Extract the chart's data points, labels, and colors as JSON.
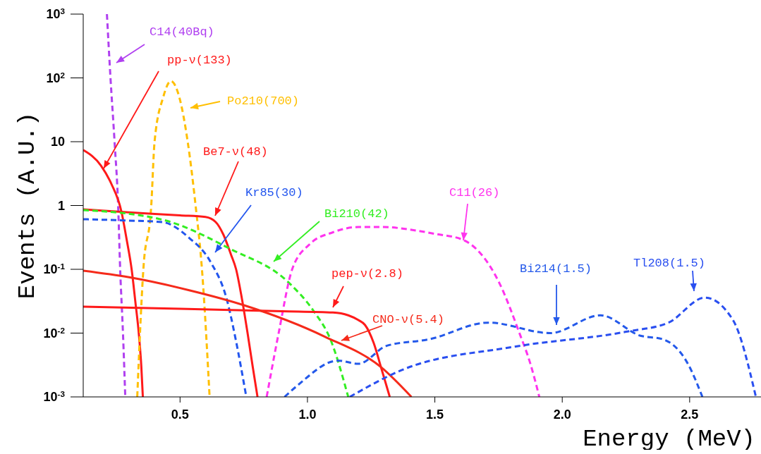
{
  "chart_data": {
    "type": "line",
    "xlabel": "Energy (MeV)",
    "ylabel": "Events (A.U.)",
    "log": "y",
    "xlim": [
      0.12,
      2.78
    ],
    "ylim": [
      0.001,
      1000
    ],
    "xticks": [
      {
        "value": 0.5,
        "label": "0.5"
      },
      {
        "value": 1.0,
        "label": "1.0"
      },
      {
        "value": 1.5,
        "label": "1.5"
      },
      {
        "value": 2.0,
        "label": "2.0"
      },
      {
        "value": 2.5,
        "label": "2.5"
      }
    ],
    "yticks": [
      {
        "value": 0.001,
        "label": "10$^{-3}$"
      },
      {
        "value": 0.01,
        "label": "10$^{-2}$"
      },
      {
        "value": 0.1,
        "label": "10$^{-1}$"
      },
      1,
      10,
      {
        "value": 100,
        "label": "10$^{2}$"
      },
      {
        "value": 1000,
        "label": "10$^{3}$"
      }
    ],
    "marker": "none",
    "series": [
      {
        "name": "C14(40Bq)",
        "color": "#b040f0",
        "line_style": "dashed",
        "x": [
          0.213,
          0.227,
          0.243,
          0.257,
          0.265,
          0.276,
          0.285
        ],
        "values": [
          1000,
          100,
          10,
          1,
          0.1,
          0.01,
          0.001
        ]
      },
      {
        "name": "pp-ν(133)",
        "color": "#ff1a1a",
        "line_style": "solid",
        "x": [
          0.12,
          0.19,
          0.23,
          0.27,
          0.29,
          0.31,
          0.325,
          0.338,
          0.348,
          0.354
        ],
        "values": [
          7.4,
          4.2,
          2.2,
          0.8,
          0.3,
          0.1,
          0.03,
          0.01,
          0.003,
          0.001
        ]
      },
      {
        "name": "Po210(700)",
        "color": "#ffbf00",
        "line_style": "dashed",
        "x": [
          0.332,
          0.356,
          0.387,
          0.4,
          0.434,
          0.464,
          0.497,
          0.53,
          0.561,
          0.586,
          0.616
        ],
        "values": [
          0.001,
          0.1,
          1,
          10,
          50,
          89,
          50,
          10,
          1,
          0.1,
          0.001
        ]
      },
      {
        "name": "Be7-ν(48)",
        "color": "#ff1a1a",
        "line_style": "solid",
        "x": [
          0.12,
          0.3,
          0.5,
          0.6,
          0.64,
          0.67,
          0.7,
          0.72,
          0.74,
          0.765,
          0.785,
          0.804
        ],
        "values": [
          0.87,
          0.78,
          0.7,
          0.66,
          0.55,
          0.35,
          0.17,
          0.1,
          0.04,
          0.01,
          0.003,
          0.001
        ]
      },
      {
        "name": "Kr85(30)",
        "color": "#2255ee",
        "line_style": "dashed",
        "x": [
          0.12,
          0.3,
          0.43,
          0.536,
          0.62,
          0.685,
          0.718,
          0.76
        ],
        "values": [
          0.61,
          0.58,
          0.55,
          0.31,
          0.13,
          0.032,
          0.0081,
          0.001
        ]
      },
      {
        "name": "Bi210(42)",
        "color": "#33ee22",
        "line_style": "dashed",
        "x": [
          0.12,
          0.43,
          0.696,
          0.93,
          1.025,
          1.09,
          1.16
        ],
        "values": [
          0.85,
          0.6,
          0.21,
          0.06,
          0.022,
          0.008,
          0.001
        ]
      },
      {
        "name": "C11(26)",
        "color": "#ff33ee",
        "line_style": "dashed",
        "x": [
          0.84,
          0.887,
          0.94,
          1.01,
          1.1,
          1.2,
          1.3,
          1.4,
          1.5,
          1.61,
          1.754,
          1.83,
          1.876,
          1.91
        ],
        "values": [
          0.001,
          0.01,
          0.1,
          0.25,
          0.38,
          0.46,
          0.46,
          0.42,
          0.36,
          0.29,
          0.06,
          0.0105,
          0.0032,
          0.001
        ]
      },
      {
        "name": "pep-ν(2.8)",
        "color": "#ff1a1a",
        "line_style": "solid",
        "x": [
          0.12,
          0.5,
          0.9,
          1.1,
          1.16,
          1.2,
          1.226,
          1.26,
          1.29,
          1.323
        ],
        "values": [
          0.026,
          0.024,
          0.022,
          0.021,
          0.019,
          0.016,
          0.0134,
          0.007,
          0.0028,
          0.001
        ]
      },
      {
        "name": "CNO-ν(5.4)",
        "color": "#f52a1a",
        "line_style": "solid",
        "x": [
          0.12,
          0.3,
          0.536,
          0.749,
          1.068,
          1.29,
          1.408
        ],
        "values": [
          0.095,
          0.075,
          0.047,
          0.0275,
          0.0088,
          0.0029,
          0.001
        ]
      },
      {
        "name": "Bi214(1.5)",
        "color": "#2459ea",
        "line_style": "dashed",
        "x": [
          0.91,
          0.96,
          1.12,
          1.2,
          1.31,
          1.478,
          1.71,
          1.953,
          2.15,
          2.307,
          2.395,
          2.495,
          2.55
        ],
        "values": [
          0.001,
          0.0015,
          0.0037,
          0.0033,
          0.0063,
          0.008,
          0.0146,
          0.01,
          0.019,
          0.0091,
          0.008,
          0.0032,
          0.001
        ]
      },
      {
        "name": "Tl208(1.5)",
        "color": "#2a4ff0",
        "line_style": "dashed",
        "x": [
          1.166,
          1.367,
          1.81,
          2.25,
          2.417,
          2.56,
          2.67,
          2.76
        ],
        "values": [
          0.001,
          0.0026,
          0.0061,
          0.0105,
          0.0146,
          0.036,
          0.016,
          0.001
        ]
      }
    ]
  }
}
